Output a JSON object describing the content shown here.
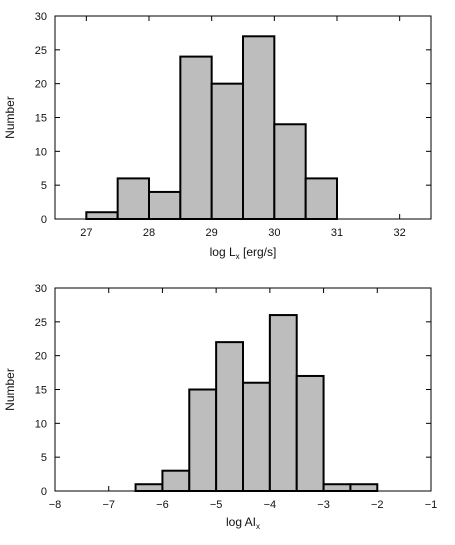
{
  "colors": {
    "bar_fill": "#bdbdbd",
    "bar_stroke": "#000000",
    "background": "#ffffff"
  },
  "chart_data": [
    {
      "type": "bar",
      "title": "",
      "xlabel": "log L",
      "xlabel_sub": "x",
      "xlabel_suffix": " [erg/s]",
      "ylabel": "Number",
      "xlim": [
        26.5,
        32.5
      ],
      "ylim": [
        0,
        30
      ],
      "xticks": [
        27,
        28,
        29,
        30,
        31,
        32
      ],
      "yticks": [
        0,
        5,
        10,
        15,
        20,
        25,
        30
      ],
      "grid": false,
      "bins": [
        {
          "x0": 27.0,
          "x1": 27.5,
          "value": 1
        },
        {
          "x0": 27.5,
          "x1": 28.0,
          "value": 6
        },
        {
          "x0": 28.0,
          "x1": 28.5,
          "value": 4
        },
        {
          "x0": 28.5,
          "x1": 29.0,
          "value": 24
        },
        {
          "x0": 29.0,
          "x1": 29.5,
          "value": 20
        },
        {
          "x0": 29.5,
          "x1": 30.0,
          "value": 27
        },
        {
          "x0": 30.0,
          "x1": 30.5,
          "value": 14
        },
        {
          "x0": 30.5,
          "x1": 31.0,
          "value": 6
        }
      ]
    },
    {
      "type": "bar",
      "title": "",
      "xlabel": "log AI",
      "xlabel_sub": "x",
      "xlabel_suffix": "",
      "ylabel": "Number",
      "xlim": [
        -8,
        -1
      ],
      "ylim": [
        0,
        30
      ],
      "xticks": [
        -8,
        -7,
        -6,
        -5,
        -4,
        -3,
        -2,
        -1
      ],
      "yticks": [
        0,
        5,
        10,
        15,
        20,
        25,
        30
      ],
      "grid": false,
      "bins": [
        {
          "x0": -6.5,
          "x1": -6.0,
          "value": 1
        },
        {
          "x0": -6.0,
          "x1": -5.5,
          "value": 3
        },
        {
          "x0": -5.5,
          "x1": -5.0,
          "value": 15
        },
        {
          "x0": -5.0,
          "x1": -4.5,
          "value": 22
        },
        {
          "x0": -4.5,
          "x1": -4.0,
          "value": 16
        },
        {
          "x0": -4.0,
          "x1": -3.5,
          "value": 26
        },
        {
          "x0": -3.5,
          "x1": -3.0,
          "value": 17
        },
        {
          "x0": -3.0,
          "x1": -2.5,
          "value": 1
        },
        {
          "x0": -2.5,
          "x1": -2.0,
          "value": 1
        }
      ]
    }
  ]
}
